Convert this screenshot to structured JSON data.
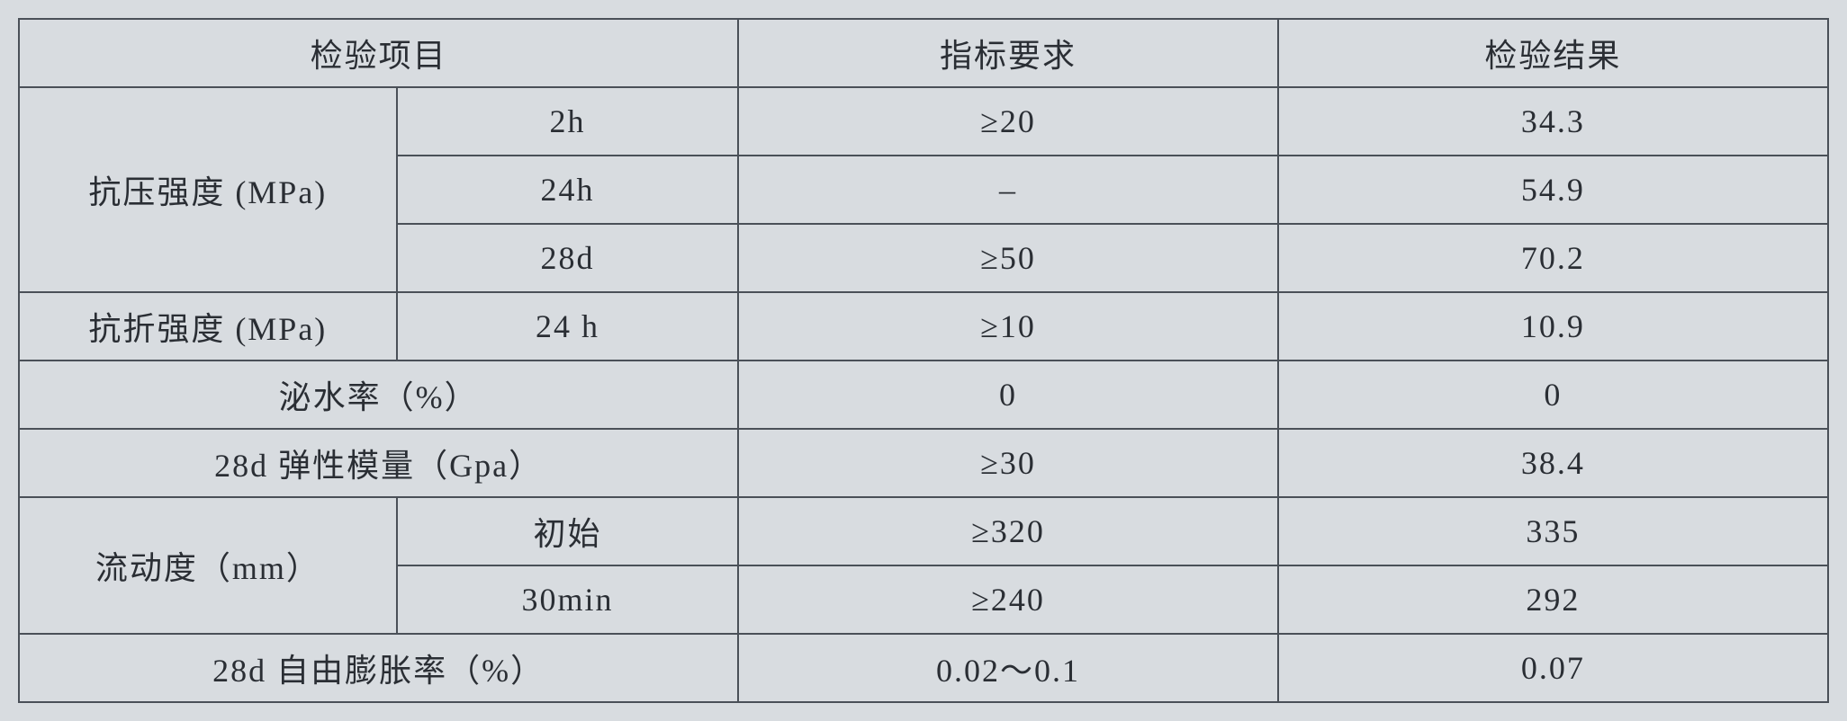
{
  "headers": {
    "item": "检验项目",
    "requirement": "指标要求",
    "result": "检验结果"
  },
  "rows": {
    "compressive_strength": {
      "label": "抗压强度 (MPa)",
      "r1": {
        "sub": "2h",
        "req": "≥20",
        "res": "34.3"
      },
      "r2": {
        "sub": "24h",
        "req": "–",
        "res": "54.9"
      },
      "r3": {
        "sub": "28d",
        "req": "≥50",
        "res": "70.2"
      }
    },
    "flexural_strength": {
      "label": "抗折强度 (MPa)",
      "r1": {
        "sub": "24 h",
        "req": "≥10",
        "res": "10.9"
      }
    },
    "bleeding_rate": {
      "label": "泌水率（%）",
      "req": "0",
      "res": "0"
    },
    "elastic_modulus": {
      "label": "28d 弹性模量（Gpa）",
      "req": "≥30",
      "res": "38.4"
    },
    "fluidity": {
      "label": "流动度（mm）",
      "r1": {
        "sub": "初始",
        "req": "≥320",
        "res": "335"
      },
      "r2": {
        "sub": "30min",
        "req": "≥240",
        "res": "292"
      }
    },
    "expansion_rate": {
      "label": "28d 自由膨胀率（%）",
      "req": "0.02～0.1",
      "res": "0.07"
    }
  }
}
